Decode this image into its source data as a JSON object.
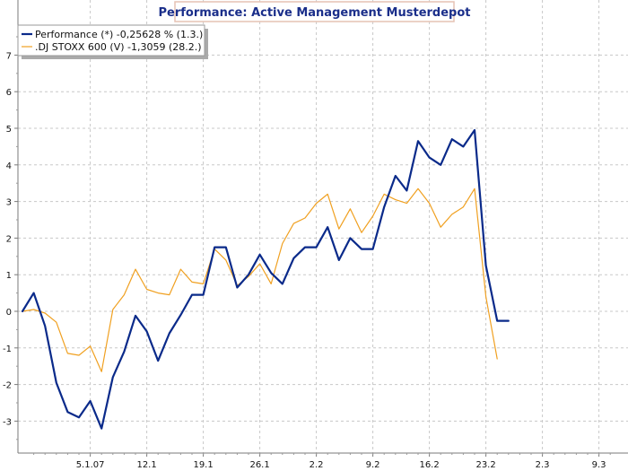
{
  "chart_data": {
    "type": "line",
    "title": "Performance: Active Management Musterdepot",
    "xlabel": "",
    "ylabel": "",
    "ylim": [
      -3.6,
      7.6
    ],
    "xlim": [
      0,
      51
    ],
    "yticks": [
      -3,
      -2,
      -1,
      0,
      1,
      2,
      3,
      4,
      5,
      6,
      7
    ],
    "grid": true,
    "legend_position": "top-left",
    "xticks": [
      {
        "label": "5.1.07",
        "x": 6
      },
      {
        "label": "12.1",
        "x": 11
      },
      {
        "label": "19.1",
        "x": 16
      },
      {
        "label": "26.1",
        "x": 21
      },
      {
        "label": "2.2",
        "x": 26
      },
      {
        "label": "9.2",
        "x": 31
      },
      {
        "label": "16.2",
        "x": 36
      },
      {
        "label": "23.2",
        "x": 41
      },
      {
        "label": "2.3",
        "x": 46
      },
      {
        "label": "9.3",
        "x": 51
      }
    ],
    "series": [
      {
        "name": "Performance (*) -0,25628 % (1.3.)",
        "color": "#0a2a8a",
        "width": 2.2,
        "values": [
          0.0,
          0.5,
          -0.4,
          -1.95,
          -2.75,
          -2.9,
          -2.45,
          -3.2,
          -1.8,
          -1.1,
          -0.12,
          -0.55,
          -1.35,
          -0.6,
          -0.1,
          0.45,
          0.45,
          1.75,
          1.75,
          0.65,
          1.0,
          1.55,
          1.05,
          0.75,
          1.45,
          1.75,
          1.75,
          2.3,
          1.4,
          2.0,
          1.7,
          1.7,
          2.85,
          3.7,
          3.3,
          4.65,
          4.2,
          4.0,
          4.7,
          4.5,
          4.95,
          1.25,
          -0.26,
          -0.26
        ]
      },
      {
        "name": ".DJ STOXX 600 (V) -1,3059 (28.2.)",
        "color": "#f0a020",
        "width": 1.2,
        "values": [
          0.0,
          0.05,
          -0.05,
          -0.3,
          -1.15,
          -1.2,
          -0.95,
          -1.65,
          0.05,
          0.45,
          1.15,
          0.6,
          0.5,
          0.45,
          1.15,
          0.8,
          0.75,
          1.7,
          1.4,
          0.7,
          0.95,
          1.3,
          0.75,
          1.85,
          2.4,
          2.55,
          2.95,
          3.2,
          2.25,
          2.8,
          2.15,
          2.6,
          3.2,
          3.05,
          2.95,
          3.35,
          2.95,
          2.3,
          2.65,
          2.85,
          3.35,
          0.4,
          -1.3
        ]
      }
    ]
  }
}
